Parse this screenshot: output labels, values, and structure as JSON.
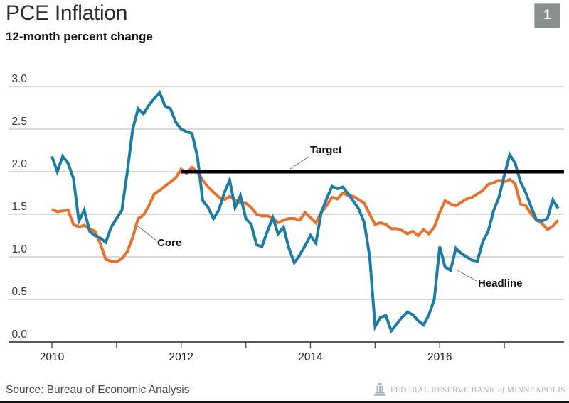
{
  "header": {
    "title": "PCE Inflation",
    "subtitle": "12-month percent change",
    "slide_number": "1"
  },
  "footer": {
    "source": "Source: Bureau of Economic Analysis",
    "logo": {
      "bank": "FEDERAL RESERVE BANK",
      "of": "of",
      "city": "MINNEAPOLIS"
    }
  },
  "colors": {
    "headline_line": "#1b7ca6",
    "core_line": "#e8702d",
    "target_line": "#000000",
    "gridline": "#b3b3b3",
    "axis": "#58595b",
    "badge": "#8b8e8f",
    "logo": "#a9b2bc"
  },
  "chart_data": {
    "type": "line",
    "title": "PCE Inflation",
    "unit_label": "12-month percent change",
    "frequency": "monthly",
    "x_axis": {
      "start": "2010-01",
      "end": "2017-11",
      "tick_years": [
        2010,
        2011,
        2012,
        2013,
        2014,
        2015,
        2016,
        2017
      ],
      "labeled_years": [
        2010,
        2012,
        2014,
        2016
      ]
    },
    "y_axis": {
      "min": 0,
      "max": 3,
      "ticks": [
        0,
        0.5,
        1,
        1.5,
        2,
        2.5,
        3
      ],
      "tick_labels": [
        "0.0",
        "0.5",
        "1.0",
        "1.5",
        "2.0",
        "2.5",
        "3.0"
      ]
    },
    "grid": true,
    "legend_position": "inline-annotations",
    "target": {
      "label": "Target",
      "value": 2.0,
      "starts": "2012-01"
    },
    "series": [
      {
        "name": "Headline",
        "color": "#1b7ca6",
        "values": [
          2.18,
          2.0,
          2.18,
          2.1,
          1.92,
          1.42,
          1.55,
          1.3,
          1.25,
          1.22,
          1.17,
          1.35,
          1.45,
          1.55,
          2.0,
          2.5,
          2.74,
          2.68,
          2.78,
          2.86,
          2.93,
          2.77,
          2.74,
          2.58,
          2.5,
          2.47,
          2.45,
          2.18,
          1.66,
          1.58,
          1.45,
          1.55,
          1.75,
          1.9,
          1.58,
          1.72,
          1.45,
          1.38,
          1.14,
          1.12,
          1.3,
          1.46,
          1.27,
          1.35,
          1.1,
          0.93,
          1.02,
          1.13,
          1.25,
          1.16,
          1.52,
          1.68,
          1.83,
          1.8,
          1.82,
          1.74,
          1.65,
          1.56,
          1.4,
          1.0,
          0.18,
          0.29,
          0.31,
          0.13,
          0.21,
          0.29,
          0.35,
          0.32,
          0.25,
          0.2,
          0.32,
          0.5,
          1.12,
          0.88,
          0.84,
          1.1,
          1.04,
          1.0,
          0.96,
          0.95,
          1.18,
          1.3,
          1.54,
          1.7,
          1.96,
          2.2,
          2.1,
          1.88,
          1.75,
          1.58,
          1.43,
          1.42,
          1.45,
          1.67,
          1.57
        ]
      },
      {
        "name": "Core",
        "color": "#e8702d",
        "values": [
          1.56,
          1.53,
          1.54,
          1.55,
          1.38,
          1.35,
          1.37,
          1.33,
          1.3,
          1.15,
          0.97,
          0.95,
          0.94,
          0.98,
          1.06,
          1.23,
          1.45,
          1.49,
          1.6,
          1.74,
          1.78,
          1.83,
          1.88,
          1.93,
          2.03,
          1.98,
          2.05,
          2.0,
          1.9,
          1.82,
          1.76,
          1.7,
          1.67,
          1.71,
          1.67,
          1.63,
          1.63,
          1.58,
          1.5,
          1.48,
          1.48,
          1.46,
          1.4,
          1.43,
          1.45,
          1.45,
          1.43,
          1.52,
          1.46,
          1.4,
          1.52,
          1.6,
          1.7,
          1.68,
          1.75,
          1.72,
          1.71,
          1.67,
          1.63,
          1.5,
          1.38,
          1.4,
          1.38,
          1.33,
          1.33,
          1.31,
          1.27,
          1.3,
          1.25,
          1.32,
          1.27,
          1.35,
          1.52,
          1.66,
          1.62,
          1.6,
          1.64,
          1.68,
          1.7,
          1.74,
          1.78,
          1.85,
          1.87,
          1.9,
          1.88,
          1.91,
          1.86,
          1.62,
          1.6,
          1.5,
          1.43,
          1.39,
          1.32,
          1.36,
          1.43
        ]
      }
    ],
    "annotations": [
      {
        "label": "Target"
      },
      {
        "label": "Core"
      },
      {
        "label": "Headline"
      }
    ]
  }
}
